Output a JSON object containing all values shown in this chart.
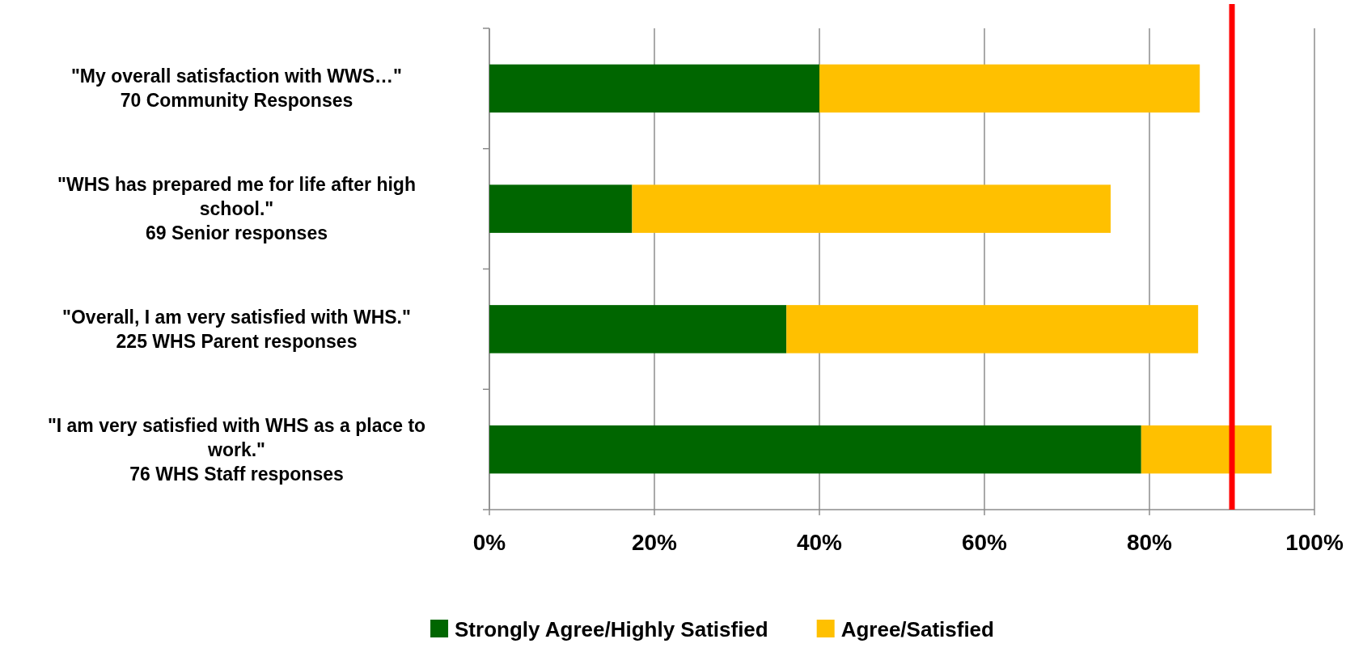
{
  "chart_data": {
    "type": "bar",
    "orientation": "horizontal",
    "stacked": true,
    "categories": [
      "\"My overall satisfaction with WWS…\"\n70 Community Responses",
      "\"WHS has prepared me for life after high school.\"\n69 Senior responses",
      "\"Overall, I am very satisfied with WHS.\"\n225 WHS Parent responses",
      "\"I am very satisfied with WHS as a place to work.\"\n76 WHS Staff responses"
    ],
    "series": [
      {
        "name": "Strongly Agree/Highly Satisfied",
        "color": "#006600",
        "values": [
          40,
          17.3,
          36,
          79
        ]
      },
      {
        "name": "Agree/Satisfied",
        "color": "#ffc000",
        "values": [
          46.1,
          58,
          49.9,
          15.8
        ]
      }
    ],
    "xlim": [
      0,
      100
    ],
    "xticks": [
      {
        "value": 0,
        "label": "0%"
      },
      {
        "value": 20,
        "label": "20%"
      },
      {
        "value": 40,
        "label": "40%"
      },
      {
        "value": 60,
        "label": "60%"
      },
      {
        "value": 80,
        "label": "80%"
      },
      {
        "value": 100,
        "label": "100%"
      }
    ],
    "grid": "x",
    "legend": "bottom",
    "ref_lines": [
      {
        "axis": "x",
        "value": 90,
        "color": "#ff0000"
      }
    ]
  }
}
